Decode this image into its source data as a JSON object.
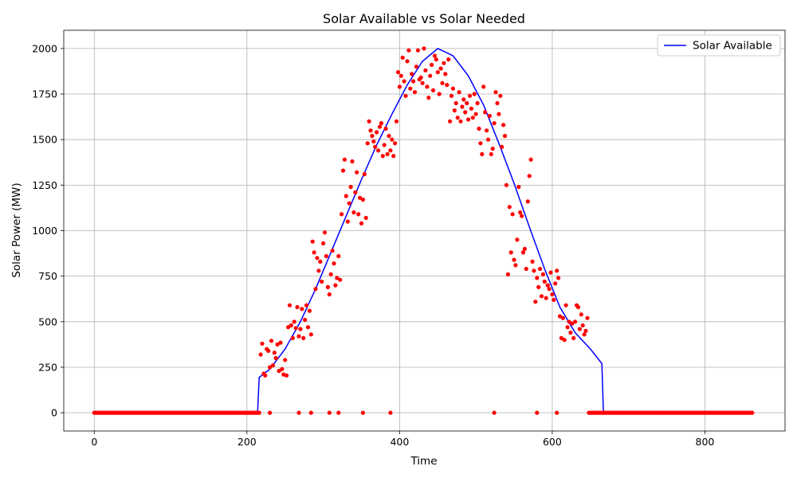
{
  "chart_data": {
    "type": "line",
    "title": "Solar Available vs Solar Needed",
    "xlabel": "Time",
    "ylabel": "Solar Power (MW)",
    "xlim": [
      -40,
      905
    ],
    "ylim": [
      -100,
      2100
    ],
    "xticks": [
      0,
      200,
      400,
      600,
      800
    ],
    "yticks": [
      0,
      250,
      500,
      750,
      1000,
      1250,
      1500,
      1750,
      2000
    ],
    "grid": true,
    "legend_position": "top-right",
    "series": [
      {
        "name": "Solar Available",
        "kind": "line",
        "color": "#0000ff",
        "x": [
          0,
          214,
          216,
          230,
          250,
          270,
          290,
          310,
          330,
          350,
          370,
          390,
          410,
          430,
          450,
          470,
          490,
          510,
          530,
          550,
          570,
          590,
          610,
          630,
          650,
          665,
          667,
          862
        ],
        "y": [
          0,
          0,
          195,
          240,
          350,
          500,
          680,
          880,
          1080,
          1280,
          1470,
          1640,
          1800,
          1930,
          2000,
          1960,
          1850,
          1690,
          1480,
          1260,
          1020,
          790,
          580,
          440,
          350,
          270,
          0,
          0
        ]
      },
      {
        "name": "",
        "kind": "scatter",
        "color": "#ff0000",
        "points": [
          [
            218,
            320
          ],
          [
            220,
            380
          ],
          [
            222,
            215
          ],
          [
            224,
            205
          ],
          [
            226,
            350
          ],
          [
            228,
            340
          ],
          [
            230,
            250
          ],
          [
            232,
            395
          ],
          [
            234,
            260
          ],
          [
            236,
            330
          ],
          [
            238,
            300
          ],
          [
            240,
            375
          ],
          [
            242,
            230
          ],
          [
            244,
            385
          ],
          [
            246,
            240
          ],
          [
            248,
            210
          ],
          [
            250,
            290
          ],
          [
            252,
            205
          ],
          [
            254,
            470
          ],
          [
            256,
            590
          ],
          [
            258,
            480
          ],
          [
            260,
            410
          ],
          [
            262,
            500
          ],
          [
            264,
            465
          ],
          [
            266,
            580
          ],
          [
            268,
            420
          ],
          [
            270,
            460
          ],
          [
            272,
            570
          ],
          [
            274,
            410
          ],
          [
            276,
            510
          ],
          [
            278,
            590
          ],
          [
            280,
            470
          ],
          [
            282,
            560
          ],
          [
            284,
            430
          ],
          [
            286,
            940
          ],
          [
            288,
            880
          ],
          [
            290,
            680
          ],
          [
            292,
            850
          ],
          [
            294,
            780
          ],
          [
            296,
            830
          ],
          [
            298,
            720
          ],
          [
            300,
            930
          ],
          [
            302,
            990
          ],
          [
            304,
            860
          ],
          [
            306,
            690
          ],
          [
            308,
            650
          ],
          [
            310,
            760
          ],
          [
            312,
            890
          ],
          [
            314,
            820
          ],
          [
            316,
            700
          ],
          [
            318,
            740
          ],
          [
            320,
            860
          ],
          [
            322,
            730
          ],
          [
            324,
            1090
          ],
          [
            326,
            1330
          ],
          [
            328,
            1390
          ],
          [
            330,
            1190
          ],
          [
            332,
            1050
          ],
          [
            334,
            1150
          ],
          [
            336,
            1240
          ],
          [
            338,
            1380
          ],
          [
            340,
            1100
          ],
          [
            342,
            1210
          ],
          [
            344,
            1320
          ],
          [
            346,
            1090
          ],
          [
            348,
            1180
          ],
          [
            350,
            1040
          ],
          [
            352,
            1170
          ],
          [
            354,
            1310
          ],
          [
            356,
            1070
          ],
          [
            358,
            1480
          ],
          [
            360,
            1600
          ],
          [
            362,
            1550
          ],
          [
            364,
            1520
          ],
          [
            366,
            1490
          ],
          [
            368,
            1460
          ],
          [
            370,
            1540
          ],
          [
            372,
            1440
          ],
          [
            374,
            1570
          ],
          [
            376,
            1590
          ],
          [
            378,
            1410
          ],
          [
            380,
            1470
          ],
          [
            382,
            1560
          ],
          [
            384,
            1420
          ],
          [
            386,
            1520
          ],
          [
            388,
            1440
          ],
          [
            390,
            1500
          ],
          [
            392,
            1410
          ],
          [
            394,
            1480
          ],
          [
            396,
            1600
          ],
          [
            398,
            1870
          ],
          [
            400,
            1790
          ],
          [
            402,
            1850
          ],
          [
            404,
            1950
          ],
          [
            406,
            1820
          ],
          [
            408,
            1740
          ],
          [
            410,
            1930
          ],
          [
            412,
            1990
          ],
          [
            414,
            1780
          ],
          [
            416,
            1860
          ],
          [
            418,
            1820
          ],
          [
            420,
            1760
          ],
          [
            422,
            1900
          ],
          [
            424,
            1990
          ],
          [
            426,
            1830
          ],
          [
            428,
            1840
          ],
          [
            430,
            1810
          ],
          [
            432,
            2000
          ],
          [
            434,
            1880
          ],
          [
            436,
            1790
          ],
          [
            438,
            1730
          ],
          [
            440,
            1850
          ],
          [
            442,
            1910
          ],
          [
            444,
            1770
          ],
          [
            446,
            1960
          ],
          [
            448,
            1940
          ],
          [
            450,
            1870
          ],
          [
            452,
            1750
          ],
          [
            454,
            1890
          ],
          [
            456,
            1810
          ],
          [
            458,
            1920
          ],
          [
            460,
            1860
          ],
          [
            462,
            1800
          ],
          [
            464,
            1940
          ],
          [
            466,
            1600
          ],
          [
            468,
            1740
          ],
          [
            470,
            1780
          ],
          [
            472,
            1660
          ],
          [
            474,
            1700
          ],
          [
            476,
            1620
          ],
          [
            478,
            1760
          ],
          [
            480,
            1600
          ],
          [
            482,
            1680
          ],
          [
            484,
            1720
          ],
          [
            486,
            1650
          ],
          [
            488,
            1700
          ],
          [
            490,
            1610
          ],
          [
            492,
            1740
          ],
          [
            494,
            1670
          ],
          [
            496,
            1620
          ],
          [
            498,
            1750
          ],
          [
            500,
            1640
          ],
          [
            502,
            1700
          ],
          [
            504,
            1560
          ],
          [
            506,
            1480
          ],
          [
            508,
            1420
          ],
          [
            510,
            1790
          ],
          [
            512,
            1650
          ],
          [
            514,
            1550
          ],
          [
            516,
            1500
          ],
          [
            518,
            1630
          ],
          [
            520,
            1420
          ],
          [
            522,
            1450
          ],
          [
            524,
            1590
          ],
          [
            526,
            1760
          ],
          [
            528,
            1700
          ],
          [
            530,
            1640
          ],
          [
            532,
            1740
          ],
          [
            534,
            1460
          ],
          [
            536,
            1580
          ],
          [
            538,
            1520
          ],
          [
            540,
            1250
          ],
          [
            542,
            760
          ],
          [
            544,
            1130
          ],
          [
            546,
            880
          ],
          [
            548,
            1090
          ],
          [
            550,
            840
          ],
          [
            552,
            810
          ],
          [
            554,
            950
          ],
          [
            556,
            1240
          ],
          [
            558,
            1100
          ],
          [
            560,
            1080
          ],
          [
            562,
            880
          ],
          [
            564,
            900
          ],
          [
            566,
            790
          ],
          [
            568,
            1160
          ],
          [
            570,
            1300
          ],
          [
            572,
            1390
          ],
          [
            574,
            830
          ],
          [
            576,
            780
          ],
          [
            578,
            610
          ],
          [
            580,
            740
          ],
          [
            582,
            690
          ],
          [
            584,
            790
          ],
          [
            586,
            640
          ],
          [
            588,
            760
          ],
          [
            590,
            720
          ],
          [
            592,
            630
          ],
          [
            594,
            700
          ],
          [
            596,
            680
          ],
          [
            598,
            770
          ],
          [
            600,
            650
          ],
          [
            602,
            620
          ],
          [
            604,
            710
          ],
          [
            606,
            780
          ],
          [
            608,
            740
          ],
          [
            610,
            530
          ],
          [
            612,
            410
          ],
          [
            614,
            520
          ],
          [
            616,
            400
          ],
          [
            618,
            590
          ],
          [
            620,
            470
          ],
          [
            622,
            500
          ],
          [
            624,
            440
          ],
          [
            626,
            490
          ],
          [
            628,
            410
          ],
          [
            630,
            500
          ],
          [
            632,
            590
          ],
          [
            634,
            580
          ],
          [
            636,
            460
          ],
          [
            638,
            540
          ],
          [
            640,
            480
          ],
          [
            642,
            430
          ],
          [
            644,
            450
          ],
          [
            646,
            520
          ],
          [
            230,
            0
          ],
          [
            268,
            0
          ],
          [
            284,
            0
          ],
          [
            308,
            0
          ],
          [
            320,
            0
          ],
          [
            352,
            0
          ],
          [
            388,
            0
          ],
          [
            524,
            0
          ],
          [
            580,
            0
          ],
          [
            606,
            0
          ]
        ],
        "baseline": {
          "y": 0,
          "x_ranges": [
            [
              0,
              216
            ],
            [
              648,
              862
            ]
          ],
          "step": 2
        }
      }
    ]
  }
}
